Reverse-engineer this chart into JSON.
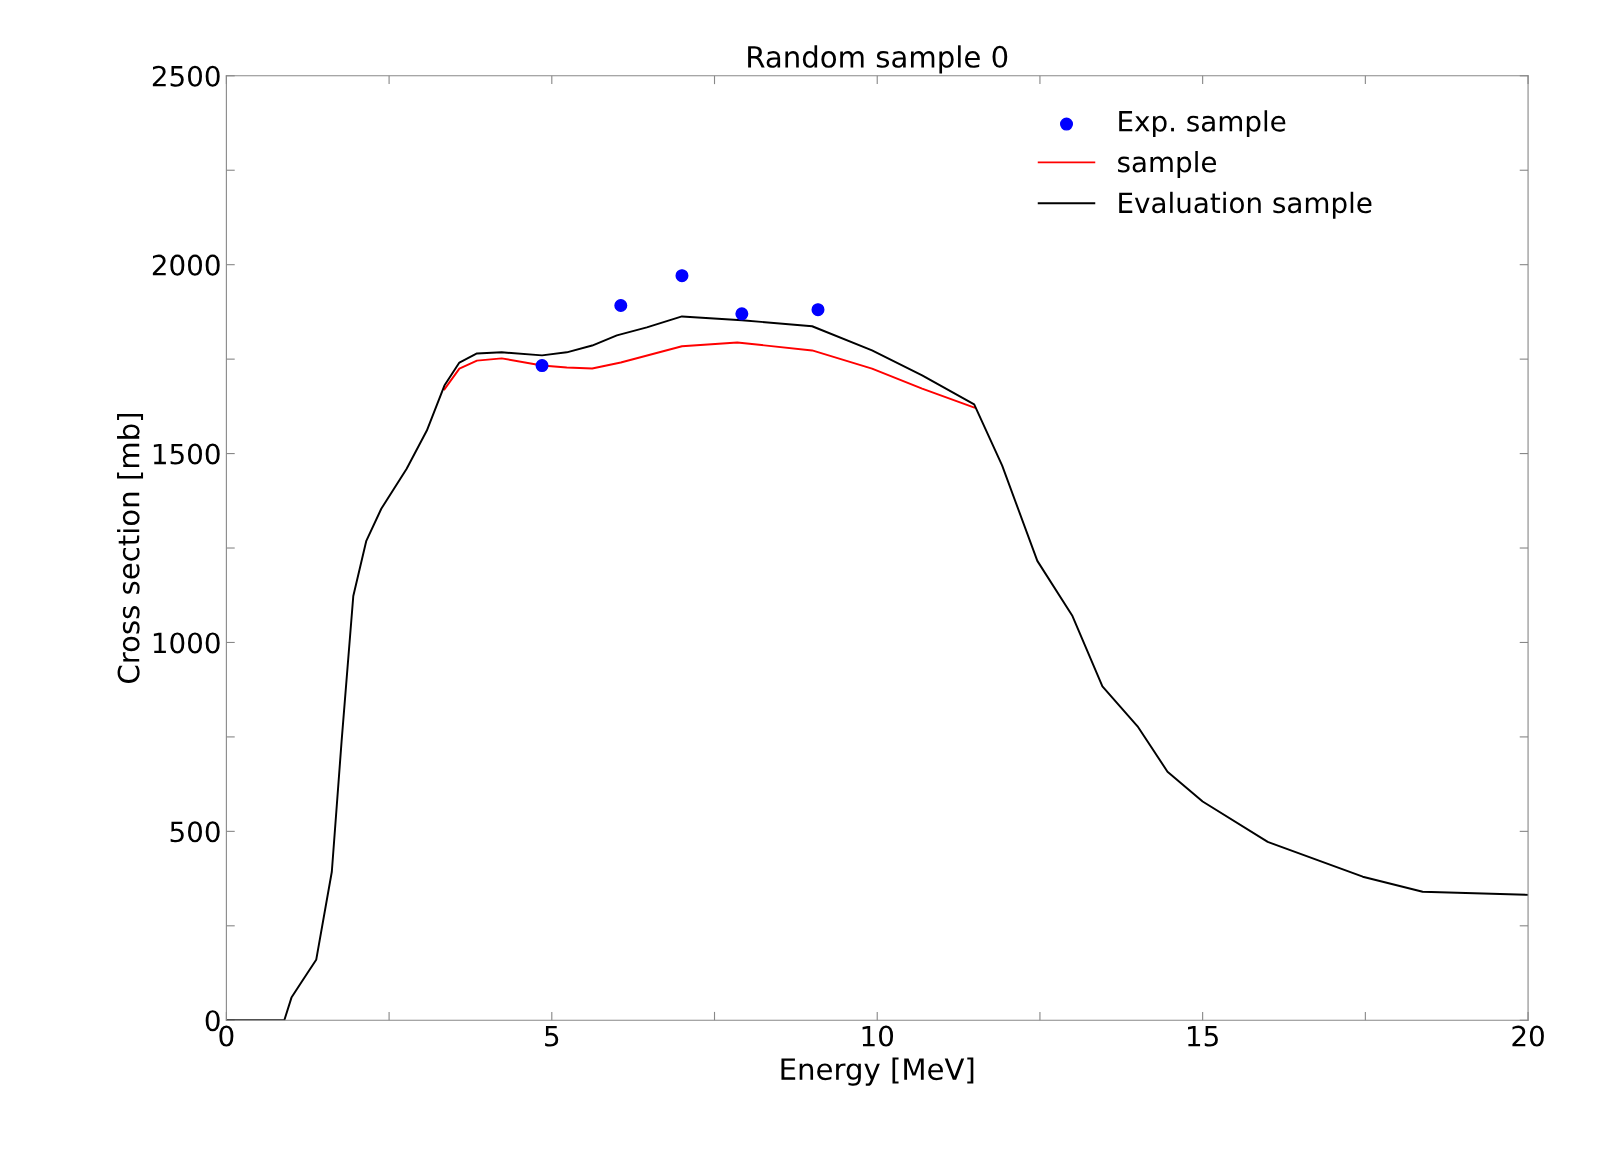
{
  "chart_data": {
    "type": "line",
    "title": "Random sample 0",
    "xlabel": "Energy [MeV]",
    "ylabel": "Cross section [mb]",
    "xlim": [
      0,
      20
    ],
    "ylim": [
      0,
      2500
    ],
    "xticks": [
      0,
      {
        "value": 2.5,
        "label": null
      },
      5,
      {
        "value": 7.5,
        "label": null
      },
      10,
      {
        "value": 12.5,
        "label": null
      },
      15,
      {
        "value": 17.5,
        "label": null
      },
      20
    ],
    "yticks": [
      0,
      {
        "value": 250,
        "label": null
      },
      500,
      {
        "value": 750,
        "label": null
      },
      1000,
      {
        "value": 1250,
        "label": null
      },
      1500,
      {
        "value": 1750,
        "label": null
      },
      2000,
      {
        "value": 2250,
        "label": null
      },
      2500
    ],
    "grid": false,
    "legend": "top right",
    "series": [
      {
        "name": "Exp. sample",
        "type": "scatter",
        "marker": "circle",
        "color": "#0000ff",
        "x": [
          4.85,
          6.06,
          7.0,
          7.92,
          9.09
        ],
        "values": [
          1733,
          1892,
          1971,
          1870,
          1881
        ]
      },
      {
        "name": "sample",
        "type": "line",
        "color": "#ff0000",
        "x": [
          3.35,
          3.58,
          3.85,
          4.23,
          4.85,
          5.23,
          5.62,
          6.06,
          7.0,
          7.85,
          9.0,
          9.92,
          10.69,
          11.49
        ],
        "values": [
          1670,
          1725,
          1746,
          1752,
          1733,
          1728,
          1725,
          1741,
          1784,
          1794,
          1773,
          1725,
          1672,
          1622
        ]
      },
      {
        "name": "Evaluation sample",
        "type": "line",
        "color": "#000000",
        "x": [
          0,
          0.89,
          1.0,
          1.15,
          1.38,
          1.62,
          1.77,
          1.95,
          2.15,
          2.38,
          2.77,
          3.08,
          3.35,
          3.58,
          3.85,
          4.23,
          4.85,
          5.23,
          5.62,
          6.0,
          6.46,
          7.0,
          7.92,
          9.0,
          9.92,
          10.69,
          11.49,
          11.92,
          12.46,
          13.0,
          13.46,
          14.0,
          14.46,
          15.0,
          16.0,
          17.46,
          18.38,
          20
        ],
        "values": [
          0,
          0,
          60,
          100,
          160,
          393,
          738,
          1123,
          1269,
          1354,
          1460,
          1561,
          1680,
          1741,
          1765,
          1768,
          1760,
          1768,
          1786,
          1813,
          1834,
          1863,
          1853,
          1837,
          1773,
          1707,
          1630,
          1468,
          1216,
          1070,
          884,
          778,
          658,
          579,
          472,
          380,
          340,
          332
        ]
      }
    ]
  }
}
